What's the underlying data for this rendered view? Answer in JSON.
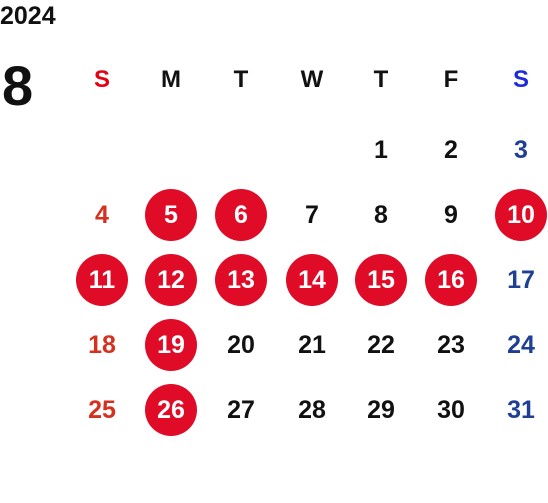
{
  "calendar": {
    "year": "2024",
    "month": "8",
    "weekdays": [
      "S",
      "M",
      "T",
      "W",
      "T",
      "F",
      "S"
    ],
    "weeks": [
      [
        null,
        null,
        null,
        null,
        "1",
        "2",
        "3"
      ],
      [
        "4",
        "5",
        "6",
        "7",
        "8",
        "9",
        "10"
      ],
      [
        "11",
        "12",
        "13",
        "14",
        "15",
        "16",
        "17"
      ],
      [
        "18",
        "19",
        "20",
        "21",
        "22",
        "23",
        "24"
      ],
      [
        "25",
        "26",
        "27",
        "28",
        "29",
        "30",
        "31"
      ]
    ],
    "highlighted_days": [
      "5",
      "6",
      "10",
      "11",
      "12",
      "13",
      "14",
      "15",
      "16",
      "19",
      "26"
    ]
  },
  "colors": {
    "highlight": "#e00b27",
    "sunday": "#d6301e",
    "saturday": "#1e3f94",
    "sunday_header": "#e60012",
    "saturday_header": "#1d2bd8",
    "text": "#111111"
  }
}
